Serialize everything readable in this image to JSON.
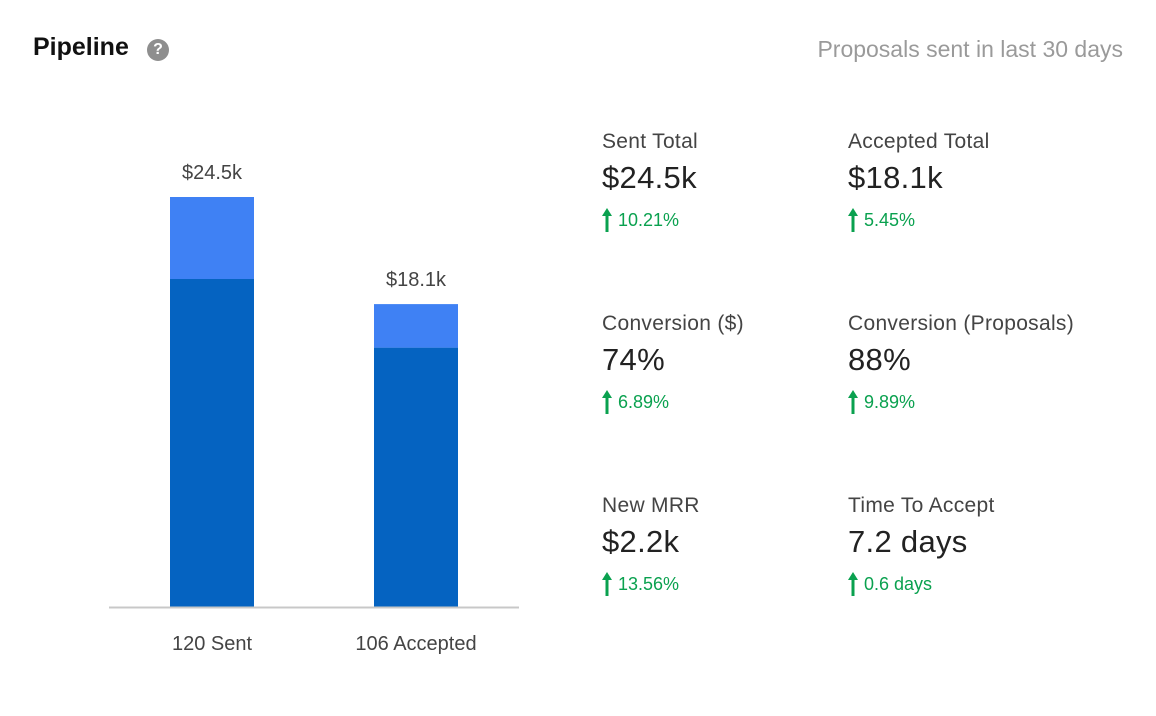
{
  "header": {
    "title": "Pipeline",
    "help_icon": "question-circle-icon",
    "subtitle": "Proposals sent in last 30 days"
  },
  "colors": {
    "bar_dark": "#0563c1",
    "bar_light": "#3f81f4",
    "axis": "#c8c8c8",
    "positive": "#0aa14f"
  },
  "chart_data": {
    "type": "bar",
    "stacked": true,
    "categories": [
      "120 Sent",
      "106 Accepted"
    ],
    "totals": [
      24.5,
      18.1
    ],
    "total_labels": [
      "$24.5k",
      "$18.1k"
    ],
    "series": [
      {
        "name": "lower segment",
        "values": [
          19.6,
          15.5
        ]
      },
      {
        "name": "upper segment",
        "values": [
          4.9,
          2.6
        ]
      }
    ],
    "units": "$k",
    "ylim": [
      0,
      24.5
    ],
    "grid": false,
    "title": "",
    "xlabel": "",
    "ylabel": ""
  },
  "metrics": [
    {
      "label": "Sent Total",
      "value": "$24.5k",
      "delta": "10.21%",
      "direction": "up"
    },
    {
      "label": "Accepted Total",
      "value": "$18.1k",
      "delta": "5.45%",
      "direction": "up"
    },
    {
      "label": "Conversion ($)",
      "value": "74%",
      "delta": "6.89%",
      "direction": "up"
    },
    {
      "label": "Conversion (Proposals)",
      "value": "88%",
      "delta": "9.89%",
      "direction": "up"
    },
    {
      "label": "New MRR",
      "value": "$2.2k",
      "delta": "13.56%",
      "direction": "up"
    },
    {
      "label": "Time To Accept",
      "value": "7.2 days",
      "delta": "0.6 days",
      "direction": "up"
    }
  ]
}
